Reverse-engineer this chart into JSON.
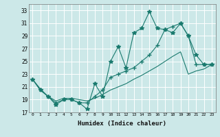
{
  "xlabel": "Humidex (Indice chaleur)",
  "background_color": "#cce8e8",
  "grid_color": "#ffffff",
  "line_color": "#1a7a6e",
  "ylim": [
    17,
    34
  ],
  "xlim": [
    -0.5,
    23.5
  ],
  "yticks": [
    17,
    19,
    21,
    23,
    25,
    27,
    29,
    31,
    33
  ],
  "xticks": [
    0,
    1,
    2,
    3,
    4,
    5,
    6,
    7,
    8,
    9,
    10,
    11,
    12,
    13,
    14,
    15,
    16,
    17,
    18,
    19,
    20,
    21,
    22,
    23
  ],
  "line1_x": [
    0,
    1,
    2,
    3,
    4,
    5,
    6,
    7,
    8,
    9,
    10,
    11,
    12,
    13,
    14,
    15,
    16,
    17,
    18,
    19,
    20,
    21,
    22,
    23
  ],
  "line1_y": [
    22.2,
    20.5,
    19.5,
    18.2,
    19.0,
    19.0,
    18.5,
    17.5,
    21.5,
    19.5,
    25.0,
    27.3,
    24.0,
    29.5,
    30.2,
    32.8,
    30.2,
    30.0,
    29.5,
    31.0,
    29.0,
    26.0,
    24.5,
    24.5
  ],
  "line2_x": [
    0,
    1,
    2,
    3,
    4,
    5,
    6,
    7,
    8,
    9,
    10,
    11,
    12,
    13,
    14,
    15,
    16,
    17,
    18,
    19,
    20,
    21,
    22,
    23
  ],
  "line2_y": [
    22.2,
    20.5,
    19.5,
    18.5,
    19.0,
    19.0,
    18.5,
    18.5,
    19.5,
    20.5,
    22.5,
    23.0,
    23.5,
    24.0,
    25.0,
    26.0,
    27.5,
    30.0,
    30.5,
    31.0,
    29.0,
    24.5,
    24.5,
    24.5
  ],
  "line3_x": [
    0,
    1,
    2,
    3,
    4,
    5,
    6,
    7,
    8,
    9,
    10,
    11,
    12,
    13,
    14,
    15,
    16,
    17,
    18,
    19,
    20,
    21,
    22,
    23
  ],
  "line3_y": [
    22.2,
    20.7,
    19.5,
    18.8,
    19.2,
    19.2,
    19.0,
    18.8,
    19.2,
    19.8,
    20.5,
    21.0,
    21.5,
    22.2,
    22.8,
    23.5,
    24.2,
    25.0,
    25.8,
    26.5,
    23.0,
    23.5,
    23.8,
    24.5
  ]
}
